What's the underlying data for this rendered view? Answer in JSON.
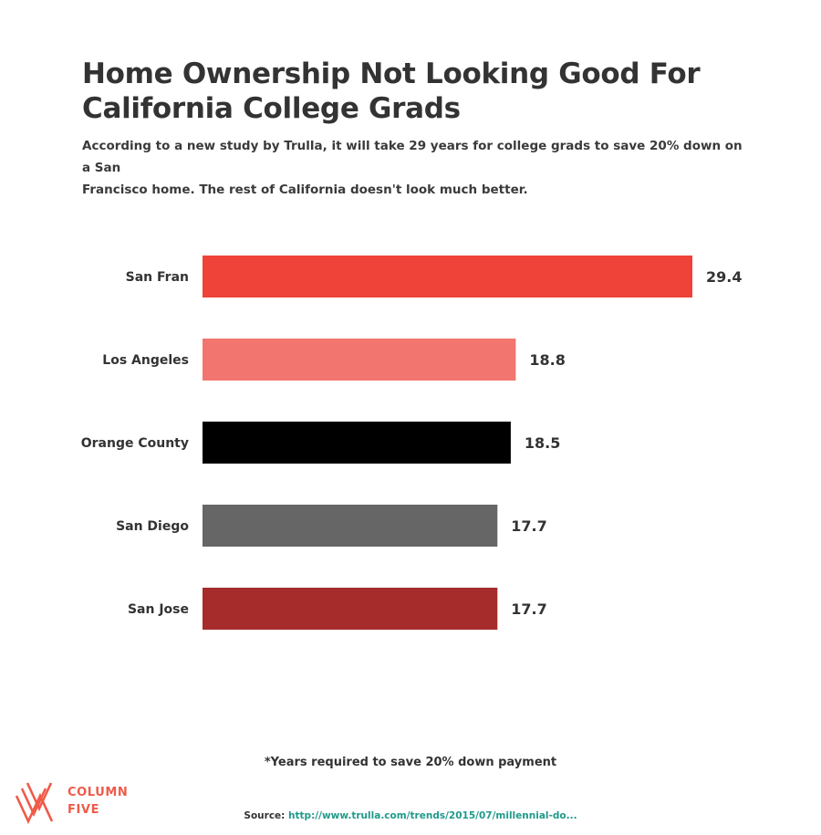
{
  "header": {
    "title_line1": "Home Ownership Not Looking Good For",
    "title_line2": "California College Grads",
    "subtitle_line1": "According to a new study by Trulla, it will take 29 years for college grads to save 20% down on a San",
    "subtitle_line2": "Francisco home. The rest of California doesn't look much better."
  },
  "chart_data": {
    "type": "bar",
    "orientation": "horizontal",
    "categories": [
      "San Fran",
      "Los Angeles",
      "Orange County",
      "San Diego",
      "San Jose"
    ],
    "values": [
      29.4,
      18.8,
      18.5,
      17.7,
      17.7
    ],
    "value_labels": [
      "29.4",
      "18.8",
      "18.5",
      "17.7",
      "17.7"
    ],
    "colors": [
      "#ef4238",
      "#f2756f",
      "#000000",
      "#666666",
      "#a62b2b"
    ],
    "xlim": [
      0,
      29.4
    ],
    "grid": false,
    "legend": "none"
  },
  "footer": {
    "footnote": "*Years required to save 20% down payment",
    "source_label": "Source:",
    "source_url": "http://www.trulla.com/trends/2015/07/millennial-do..."
  },
  "brand": {
    "logo_line1": "COLUMN",
    "logo_line2": "FIVE",
    "logo_color": "#ef5b49",
    "icon": "column-five-logo-icon"
  }
}
